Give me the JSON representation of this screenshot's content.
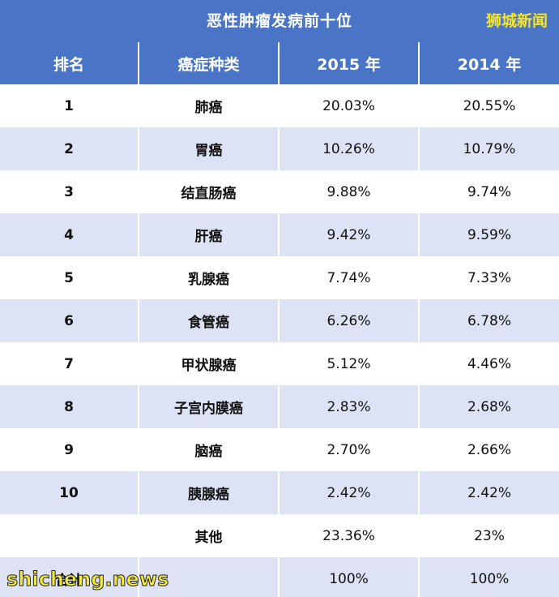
{
  "title": "恶性肿瘤发病前十位",
  "brand": "狮城新闻",
  "watermark": "shicheng.news",
  "colors": {
    "header_bg": "#4a74c6",
    "row_alt_bg": "#dde3f4",
    "brand_text": "#f5e52a"
  },
  "chart_data": {
    "type": "table",
    "title": "恶性肿瘤发病前十位",
    "columns": [
      "排名",
      "癌症种类",
      "2015 年",
      "2014 年"
    ],
    "rows": [
      {
        "rank": "1",
        "type": "肺癌",
        "y2015": "20.03%",
        "y2014": "20.55%"
      },
      {
        "rank": "2",
        "type": "胃癌",
        "y2015": "10.26%",
        "y2014": "10.79%"
      },
      {
        "rank": "3",
        "type": "结直肠癌",
        "y2015": "9.88%",
        "y2014": "9.74%"
      },
      {
        "rank": "4",
        "type": "肝癌",
        "y2015": "9.42%",
        "y2014": "9.59%"
      },
      {
        "rank": "5",
        "type": "乳腺癌",
        "y2015": "7.74%",
        "y2014": "7.33%"
      },
      {
        "rank": "6",
        "type": "食管癌",
        "y2015": "6.26%",
        "y2014": "6.78%"
      },
      {
        "rank": "7",
        "type": "甲状腺癌",
        "y2015": "5.12%",
        "y2014": "4.46%"
      },
      {
        "rank": "8",
        "type": "子宫内膜癌",
        "y2015": "2.83%",
        "y2014": "2.68%"
      },
      {
        "rank": "9",
        "type": "脑癌",
        "y2015": "2.70%",
        "y2014": "2.66%"
      },
      {
        "rank": "10",
        "type": "胰腺癌",
        "y2015": "2.42%",
        "y2014": "2.42%"
      },
      {
        "rank": "",
        "type": "其他",
        "y2015": "23.36%",
        "y2014": "23%"
      },
      {
        "rank": "合计",
        "type": "",
        "y2015": "100%",
        "y2014": "100%"
      }
    ]
  }
}
